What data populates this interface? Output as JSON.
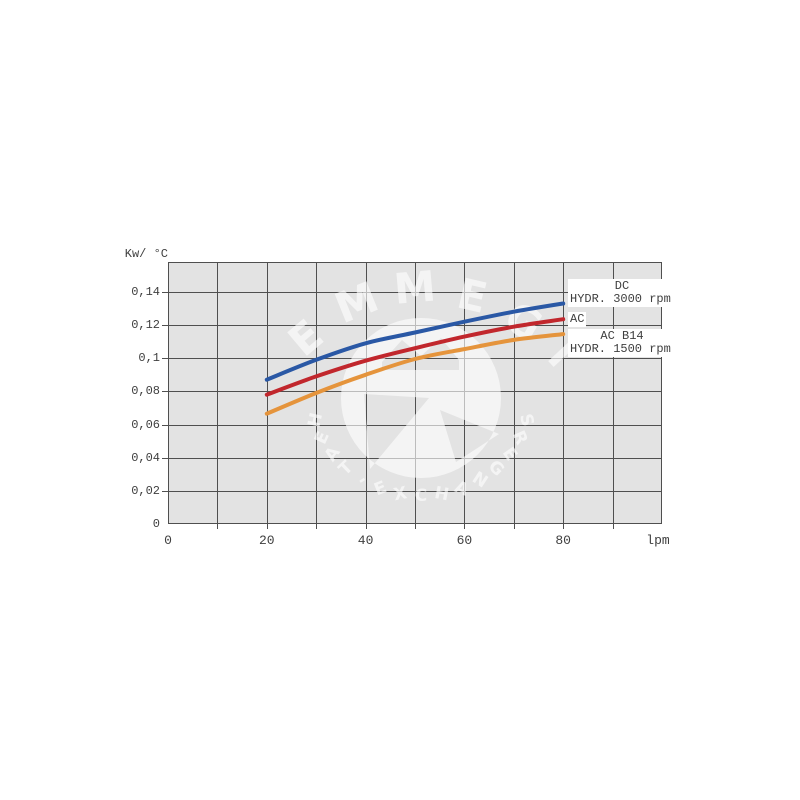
{
  "page": {
    "background": "#ffffff"
  },
  "chart_data": {
    "type": "line",
    "title": "",
    "y_axis_label": "Kw/ °C",
    "x_axis_label": "lpm",
    "grid": true,
    "x_range": [
      0,
      100
    ],
    "y_range": [
      0,
      0.158
    ],
    "x_gridline_step": 10,
    "y_gridline_step": 0.02,
    "x_ticks": [
      {
        "label": "0",
        "value": 0
      },
      {
        "label": "20",
        "value": 20
      },
      {
        "label": "40",
        "value": 40
      },
      {
        "label": "60",
        "value": 60
      },
      {
        "label": "80",
        "value": 80
      }
    ],
    "y_ticks": [
      {
        "label": "0,14",
        "value": 0.14
      },
      {
        "label": "0,12",
        "value": 0.12
      },
      {
        "label": "0,1",
        "value": 0.1
      },
      {
        "label": "0,08",
        "value": 0.08
      },
      {
        "label": "0,06",
        "value": 0.06
      },
      {
        "label": "0,04",
        "value": 0.04
      },
      {
        "label": "0,02",
        "value": 0.02
      },
      {
        "label": "0",
        "value": 0
      }
    ],
    "x": [
      20,
      30,
      40,
      50,
      60,
      70,
      80
    ],
    "series": [
      {
        "name": "DC HYDR. 3000 rpm",
        "color": "#2a58a5",
        "values": [
          0.087,
          0.099,
          0.109,
          0.1155,
          0.122,
          0.128,
          0.133
        ]
      },
      {
        "name": "AC",
        "color": "#c1272d",
        "values": [
          0.078,
          0.089,
          0.0985,
          0.106,
          0.113,
          0.119,
          0.1235
        ]
      },
      {
        "name": "AC B14 HYDR. 1500 rpm",
        "color": "#e5943c",
        "values": [
          0.0665,
          0.079,
          0.09,
          0.0995,
          0.1055,
          0.111,
          0.1145
        ]
      }
    ],
    "legend_position": "right-overlay"
  },
  "legend": {
    "entries": [
      {
        "line1": "DC",
        "line2": "HYDR. 3000 rpm"
      },
      {
        "line1": "AC",
        "line2": ""
      },
      {
        "line1": "AC B14",
        "line2": "HYDR. 1500 rpm"
      }
    ]
  },
  "watermark": {
    "word": "EMMEGI",
    "arc_text": "HEAT-EXCHANGERS",
    "color": "#ffffff"
  },
  "colors": {
    "plot_background": "#e3e3e3",
    "gridline": "#4f4f4f",
    "frame": "#4f4f4f",
    "text": "#3f3f3f",
    "series_dc": "#2a58a5",
    "series_ac": "#c1272d",
    "series_acb14": "#e5943c"
  }
}
